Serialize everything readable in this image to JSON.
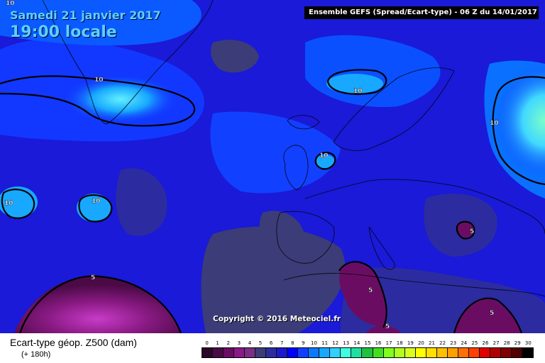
{
  "overlay": {
    "date": "Samedi 21 janvier 2017",
    "time": "19:00 locale"
  },
  "header": {
    "title": "Ensemble GEFS  (Spread/Ecart-type) - 06 Z du 14/01/2017"
  },
  "copyright": "Copyright © 2016 Meteociel.fr",
  "legend": {
    "title": "Ecart-type géop. Z500 (dam)",
    "subtitle": "(+ 180h)",
    "scale_values": [
      "0",
      "1",
      "2",
      "3",
      "4",
      "5",
      "6",
      "7",
      "8",
      "9",
      "10",
      "11",
      "12",
      "13",
      "14",
      "15",
      "16",
      "17",
      "18",
      "19",
      "20",
      "21",
      "22",
      "23",
      "24",
      "25",
      "26",
      "27",
      "28",
      "29",
      "30"
    ],
    "scale_colors": [
      "#2a0828",
      "#4b0a45",
      "#6a0d62",
      "#8a1a84",
      "#7a2e88",
      "#3c3c78",
      "#2c2ca0",
      "#1a1acc",
      "#0000ff",
      "#1040ff",
      "#0a78ff",
      "#18a8ff",
      "#30d0ff",
      "#40ffe0",
      "#20e0a0",
      "#20c040",
      "#40e020",
      "#80ff20",
      "#b0ff20",
      "#d8ff20",
      "#ffff00",
      "#ffe000",
      "#ffc000",
      "#ffa000",
      "#ff7000",
      "#ff4000",
      "#e00000",
      "#b00000",
      "#800000",
      "#500000",
      "#000000"
    ]
  },
  "contour_labels": [
    "10",
    "10",
    "10",
    "10",
    "10",
    "10",
    "10",
    "5",
    "5",
    "5",
    "5",
    "5"
  ],
  "colors": {
    "ocean_base": "#1a1ad8",
    "deep_blue": "#0f0fbe",
    "cyan_core": "#40ffe0",
    "light_blue": "#18a8ff",
    "purple_low": "#3c3c78",
    "magenta_low": "#8a1a84"
  }
}
